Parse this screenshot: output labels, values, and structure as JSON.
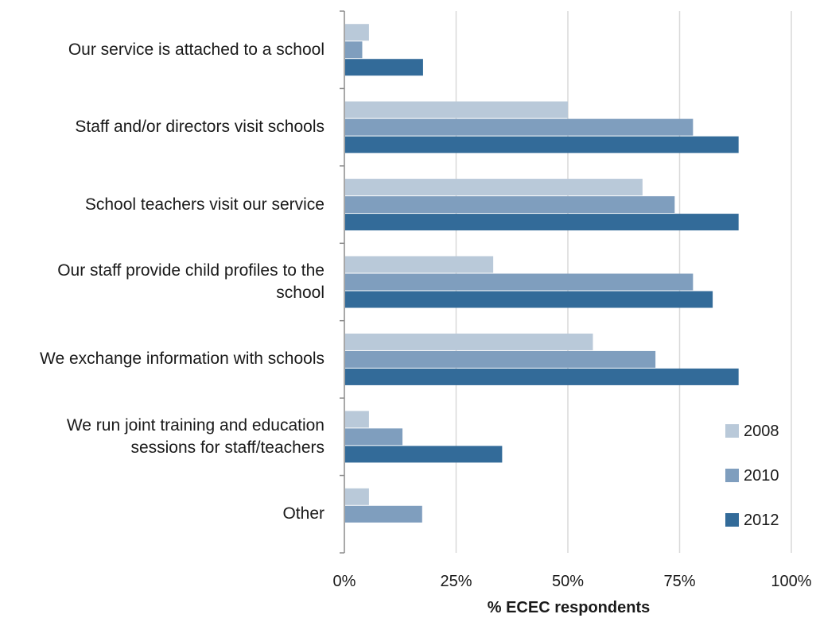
{
  "chart_data": {
    "type": "bar",
    "orientation": "horizontal",
    "categories": [
      "Our service is attached to a school",
      "Staff and/or directors visit schools",
      "School teachers visit our service",
      "Our staff provide child profiles to the school",
      "We exchange information with schools",
      "We run joint training and education sessions for staff/teachers",
      "Other"
    ],
    "series": [
      {
        "name": "2008",
        "color": "#b9c9d9",
        "values": [
          5.5,
          50,
          66.7,
          33.3,
          55.6,
          5.5,
          5.5
        ]
      },
      {
        "name": "2010",
        "color": "#7f9ebe",
        "values": [
          4,
          78,
          73.9,
          78,
          69.6,
          13,
          17.4
        ]
      },
      {
        "name": "2012",
        "color": "#336b99",
        "values": [
          17.6,
          88.2,
          88.2,
          82.4,
          88.2,
          35.3,
          0
        ]
      }
    ],
    "xlabel": "% ECEC respondents",
    "xlim": [
      0,
      100
    ],
    "xticks": [
      "0%",
      "25%",
      "50%",
      "75%",
      "100%"
    ],
    "grid": true,
    "legend_position": "bottom-right"
  }
}
